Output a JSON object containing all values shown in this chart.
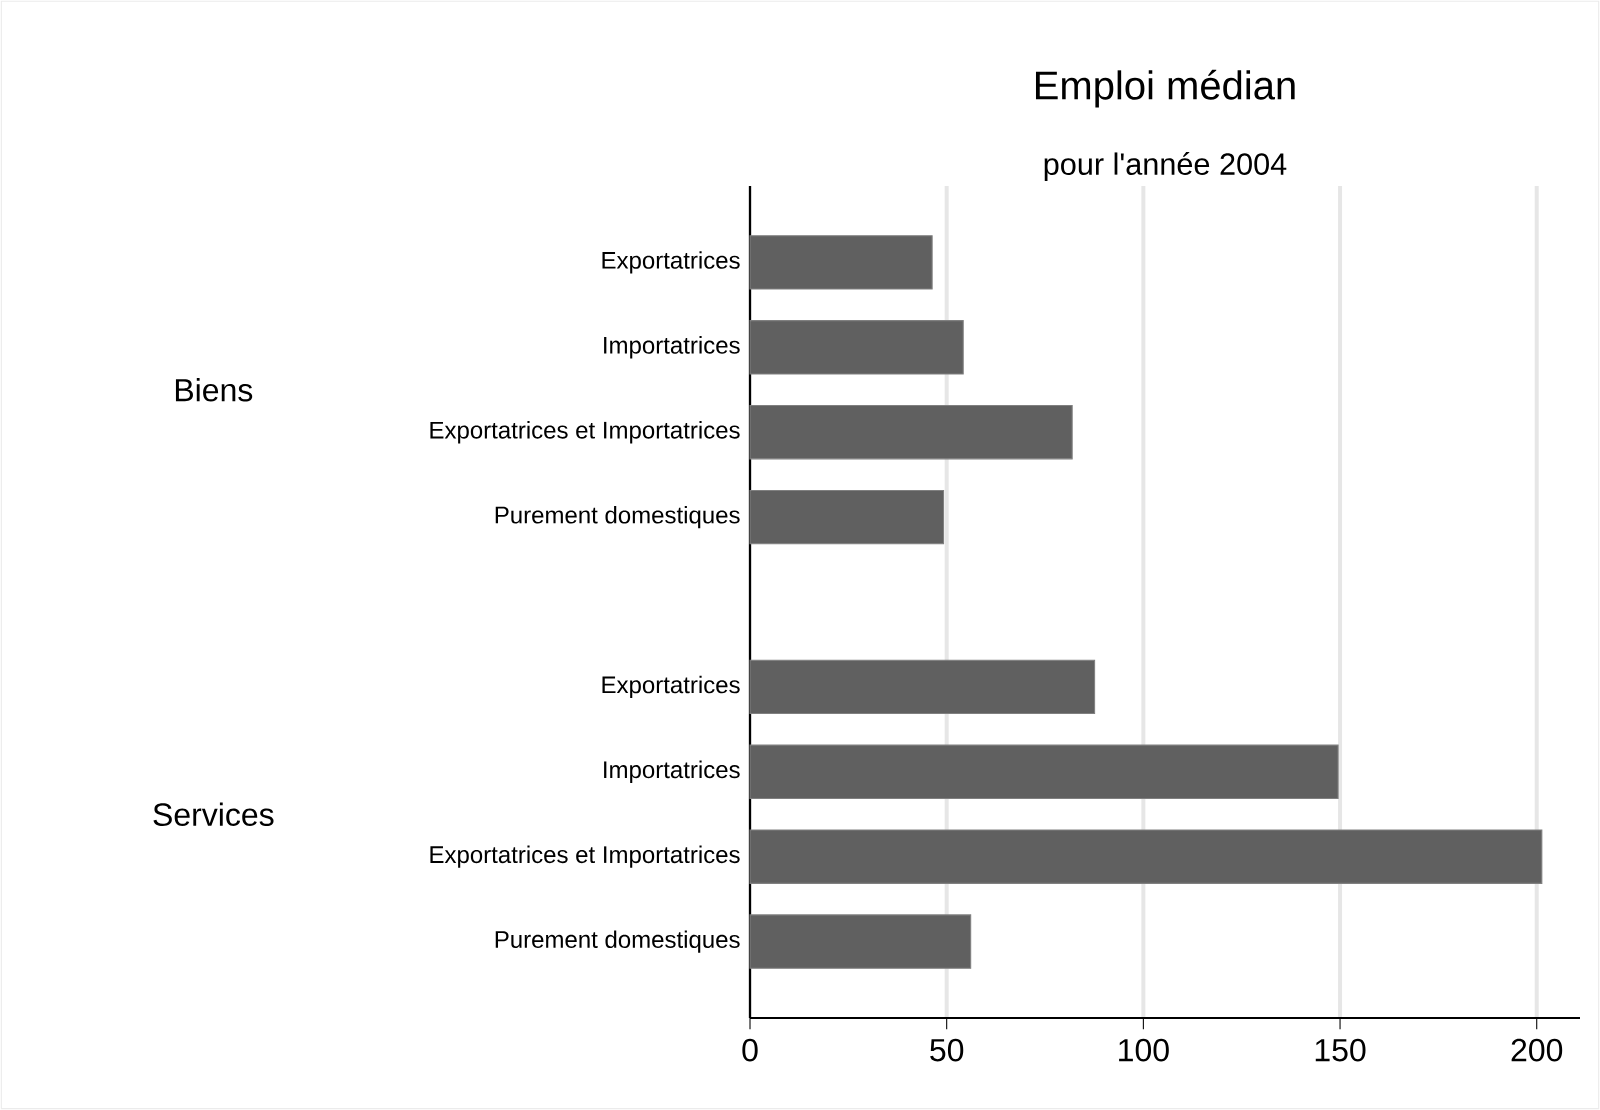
{
  "chart_data": {
    "type": "bar",
    "orientation": "horizontal",
    "title": "Emploi médian",
    "subtitle": "pour l'année 2004",
    "categories": [
      "Exportatrices",
      "Importatrices",
      "Exportatrices et Importatrices",
      "Purement domestiques",
      null,
      "Exportatrices",
      "Importatrices",
      "Exportatrices et Importatrices",
      "Purement domestiques"
    ],
    "values": [
      46.3,
      54.2,
      81.9,
      49.2,
      null,
      87.6,
      149.5,
      201.3,
      56.1
    ],
    "color": "#606060",
    "annotations": [
      "Biens",
      "Services"
    ],
    "xlim": [
      0,
      211
    ],
    "xticks": [
      0,
      50,
      100,
      150,
      200
    ],
    "grid": "x"
  }
}
